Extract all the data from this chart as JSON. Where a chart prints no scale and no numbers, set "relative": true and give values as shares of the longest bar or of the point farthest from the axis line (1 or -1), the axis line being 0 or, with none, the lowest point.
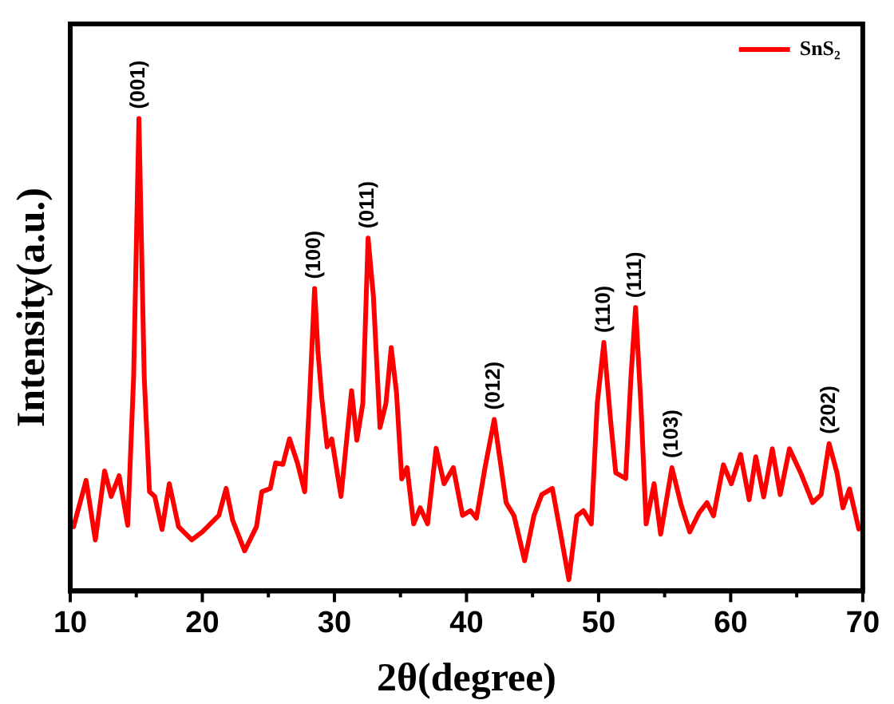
{
  "chart_data": {
    "type": "line",
    "xlabel": "2θ(degree)",
    "ylabel": "Intensity(a.u.)",
    "relative": true,
    "xlim": [
      10,
      70
    ],
    "xticks": [
      10,
      {
        "value": 15,
        "label": null
      },
      20,
      {
        "value": 25,
        "label": null
      },
      30,
      {
        "value": 35,
        "label": null
      },
      40,
      {
        "value": 45,
        "label": null
      },
      50,
      {
        "value": 55,
        "label": null
      },
      60,
      {
        "value": 65,
        "label": null
      },
      70
    ],
    "legend": "top right",
    "marker": "none",
    "line_style": "solid",
    "grid": false,
    "series": [
      {
        "name": "SnS₂",
        "color": "#ff0000",
        "x": [
          10.25,
          11.2,
          11.9,
          12.6,
          13.1,
          13.7,
          14.35,
          14.8,
          15.2,
          15.6,
          16.0,
          16.4,
          16.95,
          17.5,
          18.2,
          19.2,
          20.0,
          21.25,
          21.8,
          22.3,
          23.2,
          24.1,
          24.5,
          25.15,
          25.55,
          26.1,
          26.6,
          27.2,
          27.75,
          28.1,
          28.5,
          28.75,
          29.05,
          29.45,
          29.8,
          30.5,
          31.3,
          31.7,
          32.15,
          32.55,
          32.95,
          33.45,
          33.9,
          34.3,
          34.7,
          35.1,
          35.5,
          36.0,
          36.5,
          37.05,
          37.7,
          38.3,
          39.0,
          39.7,
          40.3,
          40.75,
          41.4,
          42.1,
          43.0,
          43.6,
          44.4,
          45.1,
          45.7,
          46.5,
          47.1,
          47.75,
          48.35,
          48.85,
          49.45,
          49.9,
          50.4,
          50.9,
          51.3,
          52.05,
          52.45,
          52.8,
          53.2,
          53.6,
          54.2,
          54.7,
          55.55,
          56.25,
          56.9,
          57.6,
          58.2,
          58.7,
          59.45,
          60.05,
          60.75,
          61.4,
          61.9,
          62.5,
          63.15,
          63.75,
          64.45,
          65.3,
          66.2,
          66.85,
          67.45,
          68.05,
          68.5,
          69.0,
          69.7
        ],
        "values": [
          0.136,
          0.234,
          0.108,
          0.254,
          0.2,
          0.244,
          0.139,
          0.454,
          1,
          0.454,
          0.21,
          0.2,
          0.13,
          0.227,
          0.136,
          0.108,
          0.125,
          0.16,
          0.217,
          0.149,
          0.085,
          0.136,
          0.21,
          0.217,
          0.271,
          0.268,
          0.322,
          0.271,
          0.21,
          0.397,
          0.64,
          0.508,
          0.407,
          0.305,
          0.322,
          0.2,
          0.424,
          0.319,
          0.397,
          0.747,
          0.624,
          0.346,
          0.397,
          0.515,
          0.42,
          0.237,
          0.261,
          0.142,
          0.176,
          0.142,
          0.302,
          0.227,
          0.261,
          0.16,
          0.17,
          0.154,
          0.261,
          0.363,
          0.187,
          0.159,
          0.064,
          0.159,
          0.204,
          0.217,
          0.125,
          0.024,
          0.159,
          0.17,
          0.142,
          0.397,
          0.526,
          0.363,
          0.25,
          0.238,
          0.453,
          0.6,
          0.397,
          0.142,
          0.227,
          0.12,
          0.261,
          0.182,
          0.125,
          0.165,
          0.187,
          0.159,
          0.267,
          0.227,
          0.289,
          0.193,
          0.284,
          0.199,
          0.301,
          0.204,
          0.301,
          0.25,
          0.187,
          0.204,
          0.312,
          0.25,
          0.176,
          0.216,
          0.131
        ]
      }
    ],
    "annotations": [
      {
        "text": "(001)",
        "x": 15.2,
        "y": 1
      },
      {
        "text": "(100)",
        "x": 28.5,
        "y": 0.64
      },
      {
        "text": "(011)",
        "x": 32.55,
        "y": 0.747
      },
      {
        "text": "(012)",
        "x": 42.1,
        "y": 0.363
      },
      {
        "text": "(110)",
        "x": 50.4,
        "y": 0.526
      },
      {
        "text": "(111)",
        "x": 52.8,
        "y": 0.6
      },
      {
        "text": "(103)",
        "x": 55.55,
        "y": 0.261
      },
      {
        "text": "(202)",
        "x": 67.45,
        "y": 0.312
      }
    ]
  }
}
